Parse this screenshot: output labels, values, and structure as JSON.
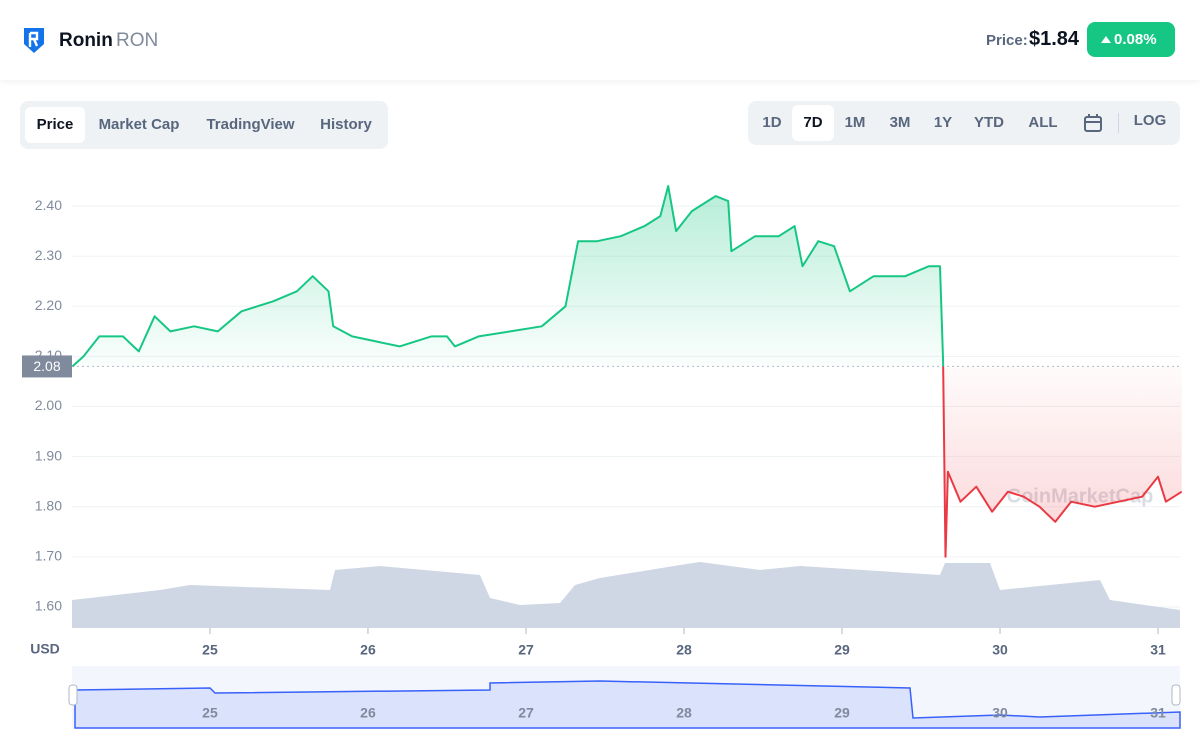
{
  "header": {
    "name": "Ronin",
    "symbol": "RON",
    "price_label": "Price:",
    "price": "$1.84",
    "change": "0.08%"
  },
  "tabs": [
    "Price",
    "Market Cap",
    "TradingView",
    "History"
  ],
  "ranges": [
    "1D",
    "7D",
    "1M",
    "3M",
    "1Y",
    "YTD",
    "ALL"
  ],
  "log_button": "LOG",
  "watermark": "CoinMarketCap",
  "chart_data": {
    "type": "line",
    "y_unit": "USD",
    "xlim": [
      24.127,
      31.139
    ],
    "xticks": [
      25,
      26,
      27,
      28,
      29,
      30,
      31
    ],
    "ylim": [
      1.558,
      2.482
    ],
    "yticks": [
      {
        "value": 1.6,
        "label": "1.60"
      },
      {
        "value": 1.7,
        "label": "1.70"
      },
      {
        "value": 1.8,
        "label": "1.80"
      },
      {
        "value": 1.9,
        "label": "1.90"
      },
      {
        "value": 2.0,
        "label": "2.00"
      },
      {
        "value": 2.1,
        "label": "2.10"
      },
      {
        "value": 2.2,
        "label": "2.20"
      },
      {
        "value": 2.3,
        "label": "2.30"
      },
      {
        "value": 2.4,
        "label": "2.40"
      }
    ],
    "grid": true,
    "baseline": {
      "value": 2.08,
      "label": "2.08"
    },
    "up_color": "#16c784",
    "down_color": "#ea3943",
    "series": [
      {
        "name": "Price",
        "x": [
          24.13,
          24.2,
          24.3,
          24.45,
          24.55,
          24.65,
          24.75,
          24.9,
          25.05,
          25.2,
          25.4,
          25.55,
          25.65,
          25.75,
          25.78,
          25.9,
          26.05,
          26.2,
          26.4,
          26.5,
          26.55,
          26.7,
          26.9,
          27.1,
          27.25,
          27.33,
          27.45,
          27.6,
          27.75,
          27.85,
          27.9,
          27.95,
          28.05,
          28.2,
          28.28,
          28.3,
          28.45,
          28.6,
          28.7,
          28.75,
          28.85,
          28.95,
          29.05,
          29.2,
          29.4,
          29.55,
          29.62,
          29.64,
          29.655,
          29.67,
          29.75,
          29.85,
          29.95,
          30.05,
          30.15,
          30.25,
          30.35,
          30.45,
          30.6,
          30.75,
          30.9,
          31.0,
          31.05,
          31.15
        ],
        "values": [
          2.08,
          2.1,
          2.14,
          2.14,
          2.11,
          2.18,
          2.15,
          2.16,
          2.15,
          2.19,
          2.21,
          2.23,
          2.26,
          2.23,
          2.16,
          2.14,
          2.13,
          2.12,
          2.14,
          2.14,
          2.12,
          2.14,
          2.15,
          2.16,
          2.2,
          2.33,
          2.33,
          2.34,
          2.36,
          2.38,
          2.44,
          2.35,
          2.39,
          2.42,
          2.41,
          2.31,
          2.34,
          2.34,
          2.36,
          2.28,
          2.33,
          2.32,
          2.23,
          2.26,
          2.26,
          2.28,
          2.28,
          2.09,
          1.7,
          1.87,
          1.81,
          1.84,
          1.79,
          1.83,
          1.82,
          1.8,
          1.77,
          1.81,
          1.8,
          1.81,
          1.82,
          1.86,
          1.81,
          1.83
        ]
      }
    ]
  }
}
